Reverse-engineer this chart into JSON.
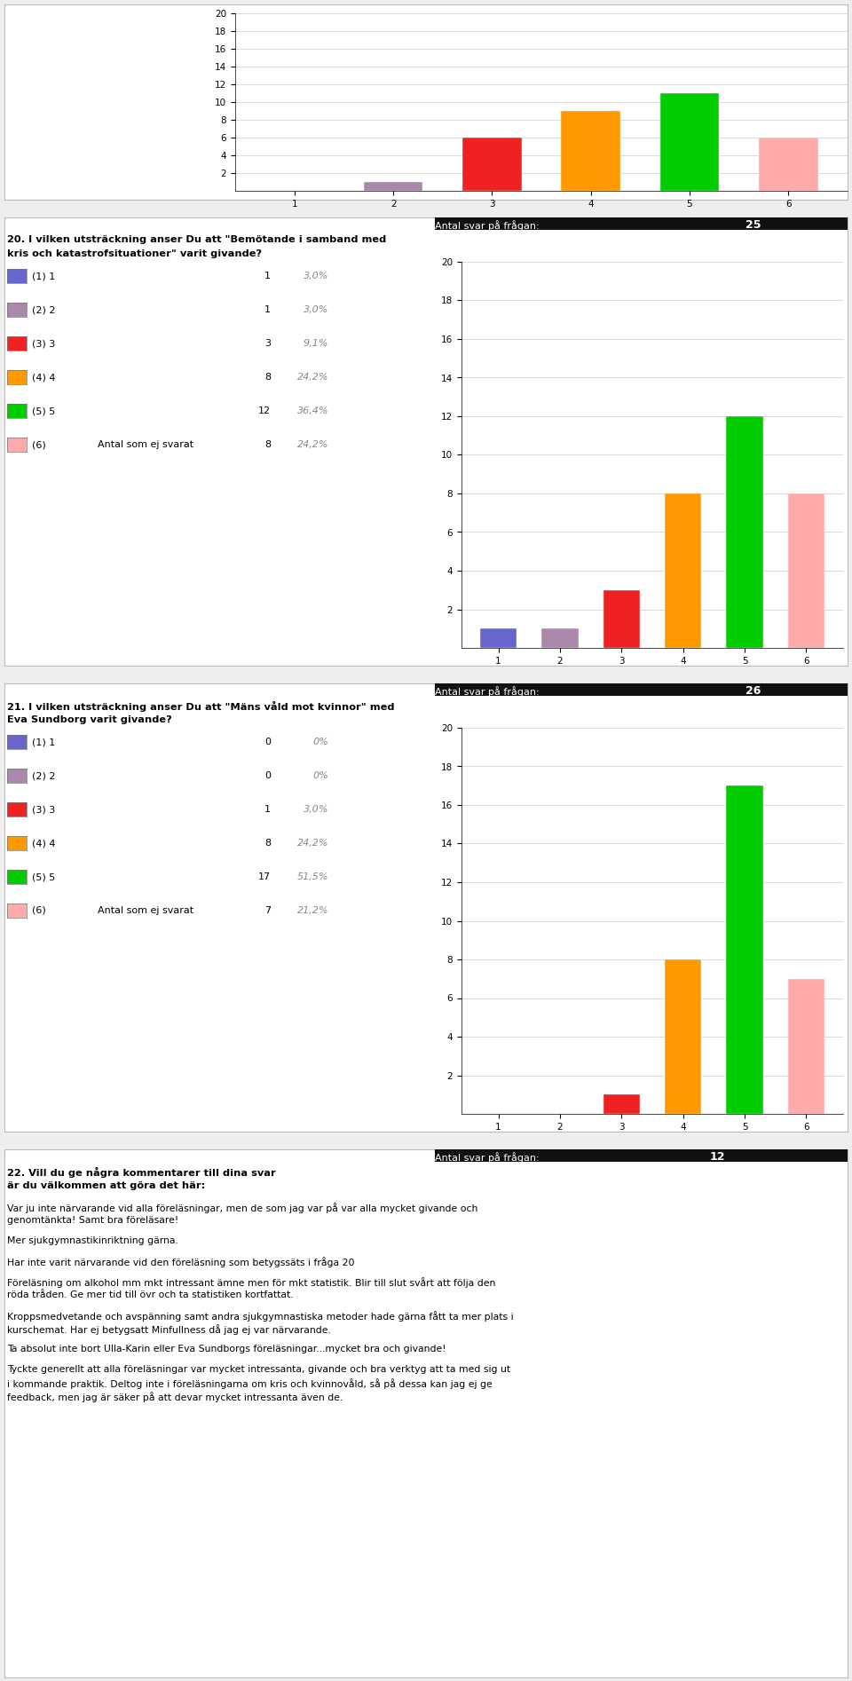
{
  "page_bg": "#eeeeee",
  "section_bg": "#ffffff",
  "bar_colors": [
    "#6666cc",
    "#aa88aa",
    "#ee2222",
    "#ff9900",
    "#00cc00",
    "#ffaaaa"
  ],
  "categories": [
    1,
    2,
    3,
    4,
    5,
    6
  ],
  "chart19": {
    "values": [
      0,
      1,
      6,
      9,
      11,
      6
    ],
    "ylim": 20,
    "yticks": [
      2,
      4,
      6,
      8,
      10,
      12,
      14,
      16,
      18,
      20
    ]
  },
  "q20": {
    "number": "20.",
    "title_line1": "I vilken utsträckning anser Du att \"Bemötande i samband med",
    "title_line2": "kris och katastrofsituationer\" varit givande?",
    "antal_svar_label": "Antal svar på frågan:",
    "antal_svar": "25",
    "legend": [
      {
        "label": "(1) 1",
        "value": "1",
        "pct": "3,0%"
      },
      {
        "label": "(2) 2",
        "value": "1",
        "pct": "3,0%"
      },
      {
        "label": "(3) 3",
        "value": "3",
        "pct": "9,1%"
      },
      {
        "label": "(4) 4",
        "value": "8",
        "pct": "24,2%"
      },
      {
        "label": "(5) 5",
        "value": "12",
        "pct": "36,4%"
      },
      {
        "label": "(6)",
        "value": "8",
        "pct": "24,2%",
        "extra": "Antal som ej svarat"
      }
    ],
    "values": [
      1,
      1,
      3,
      8,
      12,
      8
    ],
    "ylim": 20,
    "yticks": [
      2,
      4,
      6,
      8,
      10,
      12,
      14,
      16,
      18,
      20
    ]
  },
  "q21": {
    "number": "21.",
    "title_line1": "I vilken utsträckning anser Du att \"Mäns våld mot kvinnor\" med",
    "title_line2": "Eva Sundborg varit givande?",
    "antal_svar_label": "Antal svar på frågan:",
    "antal_svar": "26",
    "legend": [
      {
        "label": "(1) 1",
        "value": "0",
        "pct": "0%"
      },
      {
        "label": "(2) 2",
        "value": "0",
        "pct": "0%"
      },
      {
        "label": "(3) 3",
        "value": "1",
        "pct": "3,0%"
      },
      {
        "label": "(4) 4",
        "value": "8",
        "pct": "24,2%"
      },
      {
        "label": "(5) 5",
        "value": "17",
        "pct": "51,5%"
      },
      {
        "label": "(6)",
        "value": "7",
        "pct": "21,2%",
        "extra": "Antal som ej svarat"
      }
    ],
    "values": [
      0,
      0,
      1,
      8,
      17,
      7
    ],
    "ylim": 20,
    "yticks": [
      2,
      4,
      6,
      8,
      10,
      12,
      14,
      16,
      18,
      20
    ]
  },
  "q22": {
    "number": "22.",
    "title_line1": "Vill du ge några kommentarer till dina svar",
    "title_line2": "är du välkommen att göra det här:",
    "antal_svar_label": "Antal svar på frågan:",
    "antal_svar": "12",
    "comments": [
      "Var ju inte närvarande vid alla föreläsningar, men de som jag var på var alla mycket givande och genomtänkta! Samt bra föreläsare!",
      "Mer sjukgymnastikinriktning gärna.",
      "Har inte varit närvarande vid den föreläsning som betygssäts i fråga 20",
      "Föreläsning om alkohol mm mkt intressant ämne men för mkt statistik. Blir till slut svårt att följa den röda tråden. Ge mer tid till övr och ta statistiken kortfattat.",
      "Kroppsmedvetande och avspänning samt andra sjukgymnastiska metoder hade gärna fått ta mer plats i kurschemat. Har ej betygsatt Minfullness då jag ej var närvarande.",
      "Ta absolut inte bort Ulla-Karin eller Eva Sundborgs föreläsningar...mycket bra och givande!",
      "Tyckte generellt att alla föreläsningar var mycket intressanta, givande och bra verktyg att ta med sig ut i kommande praktik. Deltog inte i föreläsningarna om kris och kvinnovåld, så på dessa kan jag ej ge feedback, men jag är säker på att devar mycket intressanta även de."
    ]
  },
  "black_bar_color": "#111111",
  "grid_color": "#cccccc",
  "border_color": "#bbbbbb"
}
